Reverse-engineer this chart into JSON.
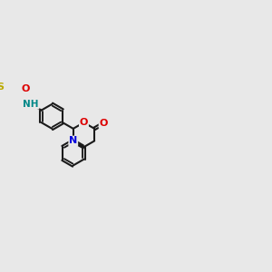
{
  "bg": "#e8e8e8",
  "bc": "#1a1a1a",
  "bw": 1.5,
  "dg": 0.028,
  "N_color": "#0000dd",
  "O_color": "#dd0000",
  "S_color": "#bbaa00",
  "H_color": "#008888",
  "fs": 8.0,
  "xlim": [
    -3.0,
    2.8
  ],
  "ylim": [
    -1.8,
    1.6
  ]
}
